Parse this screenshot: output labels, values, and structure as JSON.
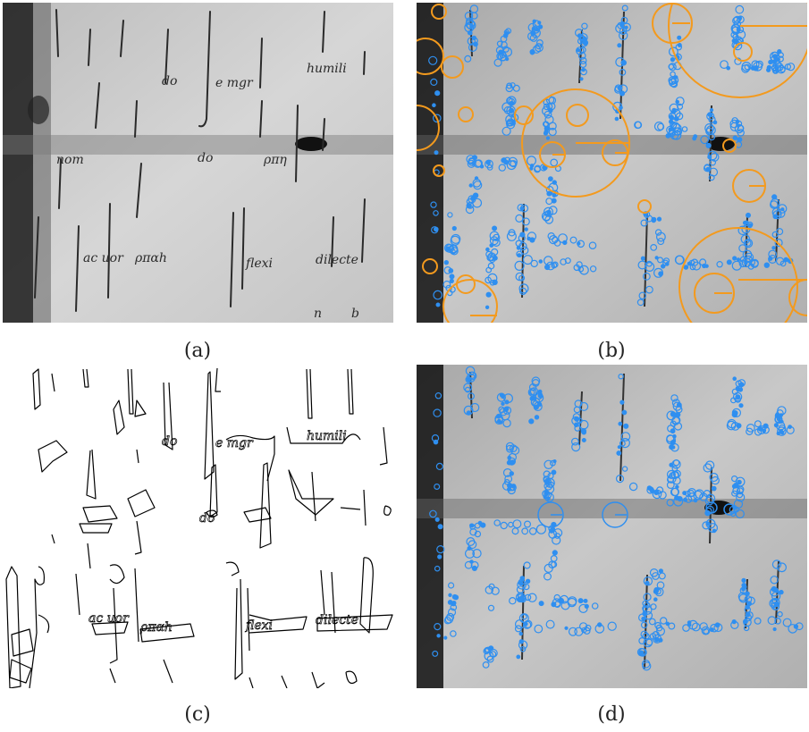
{
  "figure": {
    "captions": {
      "a": "(a)",
      "b": "(b)",
      "c": "(c)",
      "d": "(d)"
    }
  },
  "style": {
    "parchment_light": "#cfcfcf",
    "parchment_dark": "#8e8e8e",
    "ink": "#2a2a2a",
    "keypoint_blue": "#2f8ff0",
    "keypoint_orange": "#f39a1e",
    "edge_line": "#000000"
  }
}
